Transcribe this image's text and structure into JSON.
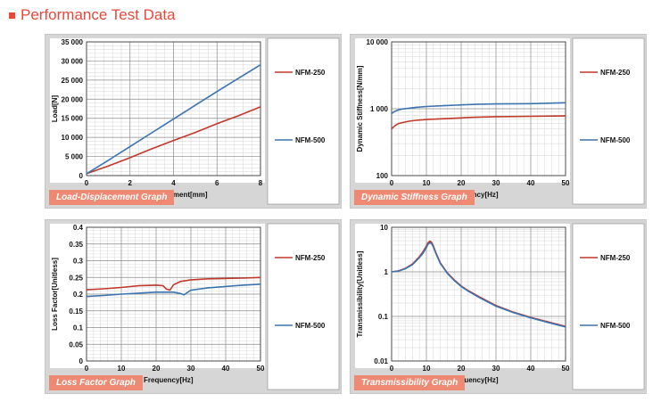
{
  "page": {
    "title": "Performance Test Data"
  },
  "colors": {
    "nfm250": "#c0392b",
    "nfm500": "#3b73b0",
    "title": "#e8483a",
    "tag": "#ee8a73"
  },
  "chart_data": [
    {
      "type": "line",
      "tag": "Load-Displacement Graph",
      "xlabel": "Displacement[mm]",
      "ylabel": "Load[N]",
      "xlim": [
        0,
        8
      ],
      "ylim": [
        0,
        35000
      ],
      "xticks": [
        0,
        2,
        4,
        6,
        8
      ],
      "xtick_labels": [
        "0",
        "2",
        "4",
        "6",
        "8"
      ],
      "yticks": [
        0,
        5000,
        10000,
        15000,
        20000,
        25000,
        30000,
        35000
      ],
      "ytick_labels": [
        "0",
        "5 000",
        "10 000",
        "15 000",
        "20 000",
        "25 000",
        "30 000",
        "35 000"
      ],
      "yscale": "linear",
      "legend": "right",
      "series": [
        {
          "name": "NFM-250",
          "x": [
            0,
            1,
            2,
            3,
            4,
            5,
            6,
            7,
            8
          ],
          "y": [
            500,
            2500,
            4700,
            7000,
            9200,
            11300,
            13600,
            15700,
            18000
          ]
        },
        {
          "name": "NFM-500",
          "x": [
            0,
            1,
            2,
            3,
            4,
            5,
            6,
            7,
            8
          ],
          "y": [
            500,
            4000,
            7600,
            11200,
            14800,
            18400,
            22000,
            25500,
            29000
          ]
        }
      ]
    },
    {
      "type": "line",
      "tag": "Dynamic Stiffness Graph",
      "xlabel": "Frequency[Hz]",
      "ylabel": "Dynamic Stiffness[N/mm]",
      "xlim": [
        0,
        50
      ],
      "ylim": [
        100,
        10000
      ],
      "xticks": [
        0,
        10,
        20,
        30,
        40,
        50
      ],
      "xtick_labels": [
        "0",
        "10",
        "20",
        "30",
        "40",
        "50"
      ],
      "yticks": [
        100,
        1000,
        10000
      ],
      "ytick_labels": [
        "100",
        "1 000",
        "10 000"
      ],
      "yscale": "log",
      "legend": "right",
      "series": [
        {
          "name": "NFM-250",
          "x": [
            0,
            1,
            2,
            3,
            5,
            7,
            10,
            15,
            20,
            22,
            25,
            30,
            40,
            50
          ],
          "y": [
            500,
            560,
            600,
            620,
            650,
            670,
            690,
            710,
            730,
            740,
            750,
            760,
            770,
            780
          ]
        },
        {
          "name": "NFM-500",
          "x": [
            0,
            1,
            2,
            3,
            5,
            7,
            10,
            15,
            20,
            25,
            30,
            40,
            50
          ],
          "y": [
            850,
            920,
            960,
            990,
            1020,
            1050,
            1080,
            1110,
            1140,
            1170,
            1180,
            1190,
            1230
          ]
        }
      ]
    },
    {
      "type": "line",
      "tag": "Loss Factor Graph",
      "xlabel": "Frequency[Hz]",
      "ylabel": "Loss Factor[Unitless]",
      "xlim": [
        0,
        50
      ],
      "ylim": [
        0,
        0.4
      ],
      "xticks": [
        0,
        10,
        20,
        30,
        40,
        50
      ],
      "xtick_labels": [
        "0",
        "10",
        "20",
        "30",
        "40",
        "50"
      ],
      "yticks": [
        0,
        0.05,
        0.1,
        0.15,
        0.2,
        0.25,
        0.3,
        0.35,
        0.4
      ],
      "ytick_labels": [
        "0",
        "0.05",
        "0.1",
        "0.15",
        "0.2",
        "0.25",
        "0.3",
        "0.35",
        "0.4"
      ],
      "yscale": "linear",
      "legend": "right",
      "series": [
        {
          "name": "NFM-250",
          "x": [
            0,
            5,
            10,
            15,
            20,
            22,
            23,
            24,
            25,
            27,
            30,
            35,
            40,
            45,
            50
          ],
          "y": [
            0.213,
            0.216,
            0.22,
            0.225,
            0.227,
            0.225,
            0.215,
            0.212,
            0.228,
            0.238,
            0.243,
            0.246,
            0.247,
            0.248,
            0.25
          ]
        },
        {
          "name": "NFM-500",
          "x": [
            0,
            5,
            10,
            15,
            20,
            25,
            27,
            28,
            29,
            30,
            35,
            40,
            45,
            50
          ],
          "y": [
            0.193,
            0.196,
            0.2,
            0.203,
            0.206,
            0.206,
            0.202,
            0.198,
            0.205,
            0.212,
            0.219,
            0.223,
            0.227,
            0.23
          ]
        }
      ]
    },
    {
      "type": "line",
      "tag": "Transmissibility Graph",
      "xlabel": "Frequency[Hz]",
      "ylabel": "Transmissibility[Unitless]",
      "xlim": [
        0,
        50
      ],
      "ylim": [
        0.01,
        10
      ],
      "xticks": [
        0,
        10,
        20,
        30,
        40,
        50
      ],
      "xtick_labels": [
        "0",
        "10",
        "20",
        "30",
        "40",
        "50"
      ],
      "yticks": [
        0.01,
        0.1,
        1,
        10
      ],
      "ytick_labels": [
        "0.01",
        "0.1",
        "1",
        "10"
      ],
      "yscale": "log",
      "legend": "right",
      "series": [
        {
          "name": "NFM-250",
          "x": [
            0,
            2,
            4,
            6,
            8,
            9,
            10,
            10.5,
            11,
            11.5,
            12,
            13,
            14,
            16,
            18,
            20,
            22,
            25,
            30,
            35,
            40,
            45,
            50
          ],
          "y": [
            1.0,
            1.05,
            1.2,
            1.5,
            2.2,
            2.8,
            3.8,
            4.5,
            4.9,
            4.6,
            3.8,
            2.4,
            1.6,
            0.95,
            0.66,
            0.48,
            0.38,
            0.28,
            0.175,
            0.125,
            0.095,
            0.075,
            0.06
          ]
        },
        {
          "name": "NFM-500",
          "x": [
            0,
            2,
            4,
            6,
            8,
            9,
            10,
            10.5,
            11,
            11.5,
            12,
            13,
            14,
            16,
            18,
            20,
            22,
            25,
            30,
            35,
            40,
            45,
            50
          ],
          "y": [
            1.0,
            1.04,
            1.18,
            1.45,
            2.1,
            2.6,
            3.5,
            4.2,
            4.5,
            4.3,
            3.6,
            2.3,
            1.55,
            0.93,
            0.64,
            0.47,
            0.37,
            0.27,
            0.17,
            0.122,
            0.093,
            0.073,
            0.058
          ]
        }
      ]
    }
  ]
}
